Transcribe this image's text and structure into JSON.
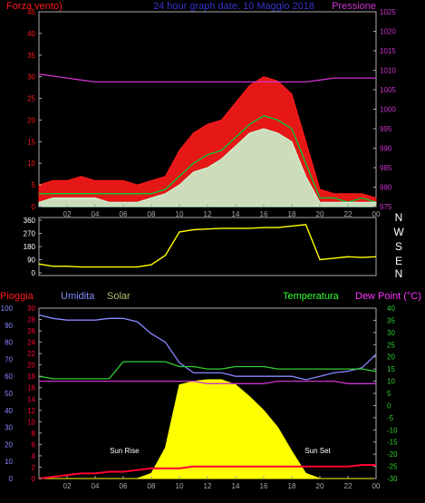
{
  "header": {
    "left_title": "Forza vento)",
    "center_title": "24 hour graph date: 10 Maggio 2018",
    "right_title": "Pressione"
  },
  "colors": {
    "wind_gust": "#ff1a1a",
    "wind_avg": "#00cc33",
    "wind_speed": "#c8ffd8",
    "pressure": "#cc33cc",
    "direction": "#ffff00",
    "rain": "#ff0033",
    "humidity": "#8888ff",
    "solar": "#ffff00",
    "temperature": "#33cc33",
    "dewpoint": "#cc33cc",
    "frame": "#aaaaaa",
    "label_rain": "#ff1a1a",
    "label_humidity": "#8888ff",
    "label_solar": "#bbbb77",
    "label_temp": "#33ff33",
    "label_dew": "#ff33ff",
    "sun_label": "#ffffff"
  },
  "chart_data": [
    {
      "id": "wind",
      "type": "line",
      "title": "24 hour graph date: 10 Maggio 2018",
      "ylabel": "Forza vento)",
      "ylabel_right": "Pressione",
      "x_ticks": [
        "02",
        "04",
        "06",
        "08",
        "10",
        "12",
        "14",
        "16",
        "18",
        "20",
        "22",
        "00"
      ],
      "ylim": [
        0,
        45
      ],
      "y_ticks": [
        0,
        5,
        10,
        15,
        20,
        25,
        30,
        35,
        40,
        45
      ],
      "ylim_right": [
        975,
        1025
      ],
      "y_ticks_right": [
        975,
        980,
        985,
        990,
        995,
        1000,
        1005,
        1010,
        1015,
        1020,
        1025
      ],
      "hours": [
        0,
        1,
        2,
        3,
        4,
        5,
        6,
        7,
        8,
        9,
        10,
        11,
        12,
        13,
        14,
        15,
        16,
        17,
        18,
        19,
        20,
        21,
        22,
        23,
        24
      ],
      "series": [
        {
          "key": "gust",
          "values": [
            5,
            6,
            6,
            7,
            6,
            6,
            6,
            5,
            6,
            7,
            13,
            17,
            19,
            20,
            24,
            28,
            30,
            29,
            26,
            15,
            4,
            3,
            3,
            3,
            2
          ]
        },
        {
          "key": "avg",
          "values": [
            3,
            3,
            3,
            3,
            3,
            3,
            3,
            3,
            3,
            4,
            7,
            10,
            12,
            13,
            16,
            19,
            21,
            20,
            18,
            10,
            2,
            2,
            1,
            2,
            1
          ]
        },
        {
          "key": "speed",
          "values": [
            1,
            2,
            2,
            2,
            2,
            1,
            1,
            1,
            2,
            3,
            5,
            8,
            9,
            11,
            14,
            17,
            18,
            17,
            15,
            7,
            1,
            1,
            1,
            1,
            1
          ]
        },
        {
          "key": "pressure",
          "axis": "right",
          "values": [
            1009,
            1008.5,
            1008,
            1007.5,
            1007,
            1007,
            1007,
            1007,
            1007,
            1007,
            1007,
            1007,
            1007,
            1007,
            1007,
            1007,
            1007,
            1007,
            1007,
            1007,
            1007.5,
            1008,
            1008,
            1008,
            1008
          ]
        }
      ]
    },
    {
      "id": "direction",
      "type": "line",
      "ylim": [
        0,
        360
      ],
      "y_ticks": [
        0,
        90,
        180,
        270,
        360
      ],
      "compass_labels": [
        "N",
        "W",
        "S",
        "E",
        "N"
      ],
      "hours": [
        0,
        1,
        2,
        3,
        4,
        5,
        6,
        7,
        8,
        9,
        10,
        11,
        12,
        13,
        14,
        15,
        16,
        17,
        18,
        19,
        20,
        21,
        22,
        23,
        24
      ],
      "values": [
        60,
        45,
        45,
        40,
        40,
        40,
        40,
        40,
        55,
        120,
        280,
        295,
        300,
        305,
        305,
        305,
        310,
        310,
        320,
        330,
        90,
        100,
        110,
        105,
        110
      ]
    },
    {
      "id": "weather",
      "type": "line",
      "labels": {
        "rain": "Pioggia",
        "humidity": "Umidita",
        "solar": "Solar",
        "temperature": "Temperatura",
        "dewpoint": "Dew Point (°C)"
      },
      "ylim_rain": [
        0,
        100
      ],
      "y_ticks_rain": [
        0,
        10,
        20,
        30,
        40,
        50,
        60,
        70,
        80,
        90,
        100
      ],
      "ylim_humidity": [
        0,
        30
      ],
      "y_ticks_humidity": [
        0,
        2,
        4,
        6,
        8,
        10,
        12,
        14,
        16,
        18,
        20,
        22,
        24,
        26,
        28,
        30
      ],
      "ylim_temp": [
        -30,
        40
      ],
      "y_ticks_temp": [
        -30,
        -25,
        -20,
        -15,
        -10,
        -5,
        0,
        5,
        10,
        15,
        20,
        25,
        30,
        35,
        40
      ],
      "x_ticks": [
        "02",
        "04",
        "06",
        "08",
        "10",
        "12",
        "14",
        "16",
        "18",
        "20",
        "22",
        "00"
      ],
      "annotations": {
        "sunrise": "Sun Rise",
        "sunset": "Sun Set"
      },
      "hours": [
        0,
        1,
        2,
        3,
        4,
        5,
        6,
        7,
        8,
        9,
        10,
        11,
        12,
        13,
        14,
        15,
        16,
        17,
        18,
        19,
        20,
        21,
        22,
        23,
        24
      ],
      "rain": [
        0,
        1,
        2,
        3,
        3,
        4,
        4,
        5,
        6,
        6,
        6,
        7,
        7,
        7,
        7,
        7,
        7,
        7,
        7,
        7,
        7,
        7,
        7,
        8,
        8
      ],
      "humidity": [
        96,
        94,
        93,
        93,
        93,
        94,
        94,
        92,
        85,
        80,
        68,
        62,
        62,
        62,
        60,
        60,
        60,
        60,
        60,
        58,
        60,
        62,
        63,
        65,
        73
      ],
      "solar": [
        0,
        0,
        0,
        0,
        0,
        0,
        0,
        0,
        3,
        18,
        55,
        57,
        58,
        58,
        55,
        48,
        40,
        30,
        16,
        3,
        0,
        0,
        0,
        0,
        0
      ],
      "temperature": [
        12,
        11,
        11,
        11,
        11,
        11,
        18,
        18,
        18,
        18,
        16,
        16,
        15,
        15,
        16,
        16,
        16,
        15,
        15,
        15,
        15,
        15,
        15,
        15,
        14
      ],
      "dewpoint": [
        10,
        10,
        10,
        10,
        10,
        10,
        10,
        10,
        10,
        10,
        10,
        10,
        9,
        9,
        9,
        9,
        9,
        10,
        10,
        10,
        10,
        10,
        9,
        9,
        9
      ]
    }
  ]
}
